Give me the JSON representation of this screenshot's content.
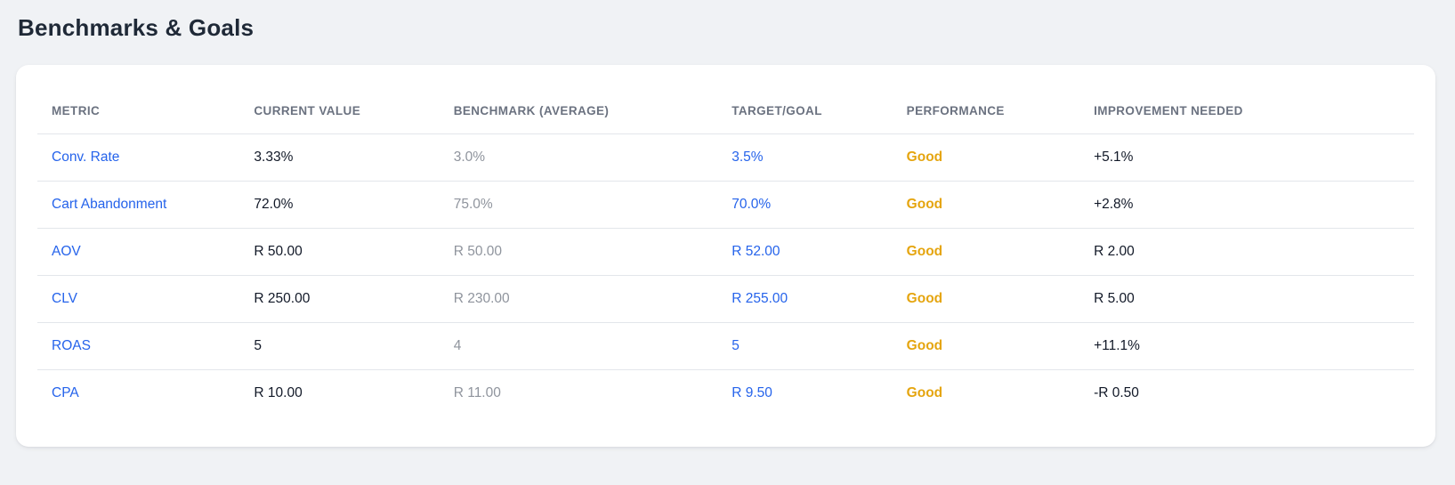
{
  "page": {
    "title": "Benchmarks & Goals"
  },
  "colors": {
    "page_background": "#f0f2f5",
    "card_background": "#ffffff",
    "title_text": "#1f2937",
    "header_text": "#6b7280",
    "dark_text": "#111827",
    "muted_text": "#8f949d",
    "link_blue": "#2563eb",
    "performance_good": "#e5a50f",
    "divider": "#e3e6eb"
  },
  "table": {
    "columns": [
      "METRIC",
      "CURRENT VALUE",
      "BENCHMARK (AVERAGE)",
      "TARGET/GOAL",
      "PERFORMANCE",
      "IMPROVEMENT NEEDED"
    ],
    "rows": [
      {
        "metric": "Conv. Rate",
        "current": "3.33%",
        "benchmark": "3.0%",
        "target": "3.5%",
        "performance": "Good",
        "improvement": "+5.1%"
      },
      {
        "metric": "Cart Abandonment",
        "current": "72.0%",
        "benchmark": "75.0%",
        "target": "70.0%",
        "performance": "Good",
        "improvement": "+2.8%"
      },
      {
        "metric": "AOV",
        "current": "R 50.00",
        "benchmark": "R 50.00",
        "target": "R 52.00",
        "performance": "Good",
        "improvement": "R 2.00"
      },
      {
        "metric": "CLV",
        "current": "R 250.00",
        "benchmark": "R 230.00",
        "target": "R 255.00",
        "performance": "Good",
        "improvement": "R 5.00"
      },
      {
        "metric": "ROAS",
        "current": "5",
        "benchmark": "4",
        "target": "5",
        "performance": "Good",
        "improvement": "+11.1%"
      },
      {
        "metric": "CPA",
        "current": "R 10.00",
        "benchmark": "R 11.00",
        "target": "R 9.50",
        "performance": "Good",
        "improvement": "-R 0.50"
      }
    ]
  }
}
